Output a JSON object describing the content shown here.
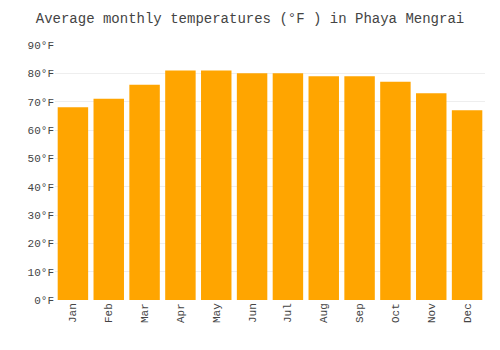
{
  "chart_data": {
    "type": "bar",
    "title": "Average monthly temperatures (°F ) in Phaya Mengrai",
    "categories": [
      "Jan",
      "Feb",
      "Mar",
      "Apr",
      "May",
      "Jun",
      "Jul",
      "Aug",
      "Sep",
      "Oct",
      "Nov",
      "Dec"
    ],
    "values": [
      68,
      71,
      76,
      81,
      81,
      80,
      80,
      79,
      79,
      77,
      73,
      67
    ],
    "color": "#FFA500",
    "ylim": [
      0,
      90
    ],
    "yticks": [
      {
        "value": 0,
        "label": "0°F"
      },
      {
        "value": 10,
        "label": "10°F"
      },
      {
        "value": 20,
        "label": "20°F"
      },
      {
        "value": 30,
        "label": "30°F"
      },
      {
        "value": 40,
        "label": "40°F"
      },
      {
        "value": 50,
        "label": "50°F"
      },
      {
        "value": 60,
        "label": "60°F"
      },
      {
        "value": 70,
        "label": "70°F"
      },
      {
        "value": 80,
        "label": "80°F"
      },
      {
        "value": 90,
        "label": "90°F"
      }
    ],
    "grid": true
  }
}
